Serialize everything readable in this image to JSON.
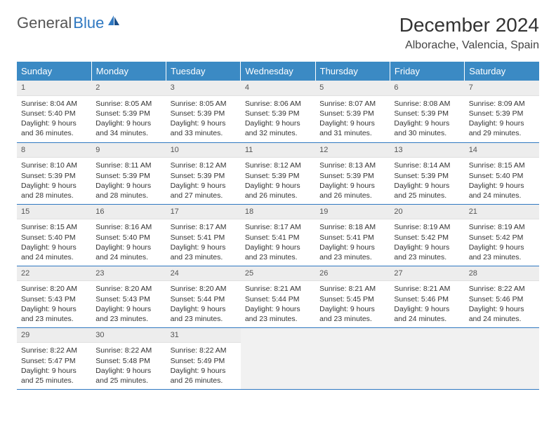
{
  "brand": {
    "part1": "General",
    "part2": "Blue"
  },
  "title": "December 2024",
  "location": "Alborache, Valencia, Spain",
  "colors": {
    "header_bg": "#3b8ac4",
    "header_text": "#ffffff",
    "accent_line": "#2f78c1",
    "daynum_bg": "#ededed",
    "empty_bg": "#f1f1f1",
    "page_bg": "#ffffff",
    "text": "#333333"
  },
  "typography": {
    "title_fontsize": 28,
    "location_fontsize": 16,
    "header_fontsize": 13,
    "cell_fontsize": 10.5
  },
  "weekdays": [
    "Sunday",
    "Monday",
    "Tuesday",
    "Wednesday",
    "Thursday",
    "Friday",
    "Saturday"
  ],
  "grid": {
    "rows": 5,
    "cols": 7
  },
  "days": [
    {
      "n": 1,
      "sunrise": "8:04 AM",
      "sunset": "5:40 PM",
      "dayh": 9,
      "daym": 36
    },
    {
      "n": 2,
      "sunrise": "8:05 AM",
      "sunset": "5:39 PM",
      "dayh": 9,
      "daym": 34
    },
    {
      "n": 3,
      "sunrise": "8:05 AM",
      "sunset": "5:39 PM",
      "dayh": 9,
      "daym": 33
    },
    {
      "n": 4,
      "sunrise": "8:06 AM",
      "sunset": "5:39 PM",
      "dayh": 9,
      "daym": 32
    },
    {
      "n": 5,
      "sunrise": "8:07 AM",
      "sunset": "5:39 PM",
      "dayh": 9,
      "daym": 31
    },
    {
      "n": 6,
      "sunrise": "8:08 AM",
      "sunset": "5:39 PM",
      "dayh": 9,
      "daym": 30
    },
    {
      "n": 7,
      "sunrise": "8:09 AM",
      "sunset": "5:39 PM",
      "dayh": 9,
      "daym": 29
    },
    {
      "n": 8,
      "sunrise": "8:10 AM",
      "sunset": "5:39 PM",
      "dayh": 9,
      "daym": 28
    },
    {
      "n": 9,
      "sunrise": "8:11 AM",
      "sunset": "5:39 PM",
      "dayh": 9,
      "daym": 28
    },
    {
      "n": 10,
      "sunrise": "8:12 AM",
      "sunset": "5:39 PM",
      "dayh": 9,
      "daym": 27
    },
    {
      "n": 11,
      "sunrise": "8:12 AM",
      "sunset": "5:39 PM",
      "dayh": 9,
      "daym": 26
    },
    {
      "n": 12,
      "sunrise": "8:13 AM",
      "sunset": "5:39 PM",
      "dayh": 9,
      "daym": 26
    },
    {
      "n": 13,
      "sunrise": "8:14 AM",
      "sunset": "5:39 PM",
      "dayh": 9,
      "daym": 25
    },
    {
      "n": 14,
      "sunrise": "8:15 AM",
      "sunset": "5:40 PM",
      "dayh": 9,
      "daym": 24
    },
    {
      "n": 15,
      "sunrise": "8:15 AM",
      "sunset": "5:40 PM",
      "dayh": 9,
      "daym": 24
    },
    {
      "n": 16,
      "sunrise": "8:16 AM",
      "sunset": "5:40 PM",
      "dayh": 9,
      "daym": 24
    },
    {
      "n": 17,
      "sunrise": "8:17 AM",
      "sunset": "5:41 PM",
      "dayh": 9,
      "daym": 23
    },
    {
      "n": 18,
      "sunrise": "8:17 AM",
      "sunset": "5:41 PM",
      "dayh": 9,
      "daym": 23
    },
    {
      "n": 19,
      "sunrise": "8:18 AM",
      "sunset": "5:41 PM",
      "dayh": 9,
      "daym": 23
    },
    {
      "n": 20,
      "sunrise": "8:19 AM",
      "sunset": "5:42 PM",
      "dayh": 9,
      "daym": 23
    },
    {
      "n": 21,
      "sunrise": "8:19 AM",
      "sunset": "5:42 PM",
      "dayh": 9,
      "daym": 23
    },
    {
      "n": 22,
      "sunrise": "8:20 AM",
      "sunset": "5:43 PM",
      "dayh": 9,
      "daym": 23
    },
    {
      "n": 23,
      "sunrise": "8:20 AM",
      "sunset": "5:43 PM",
      "dayh": 9,
      "daym": 23
    },
    {
      "n": 24,
      "sunrise": "8:20 AM",
      "sunset": "5:44 PM",
      "dayh": 9,
      "daym": 23
    },
    {
      "n": 25,
      "sunrise": "8:21 AM",
      "sunset": "5:44 PM",
      "dayh": 9,
      "daym": 23
    },
    {
      "n": 26,
      "sunrise": "8:21 AM",
      "sunset": "5:45 PM",
      "dayh": 9,
      "daym": 23
    },
    {
      "n": 27,
      "sunrise": "8:21 AM",
      "sunset": "5:46 PM",
      "dayh": 9,
      "daym": 24
    },
    {
      "n": 28,
      "sunrise": "8:22 AM",
      "sunset": "5:46 PM",
      "dayh": 9,
      "daym": 24
    },
    {
      "n": 29,
      "sunrise": "8:22 AM",
      "sunset": "5:47 PM",
      "dayh": 9,
      "daym": 25
    },
    {
      "n": 30,
      "sunrise": "8:22 AM",
      "sunset": "5:48 PM",
      "dayh": 9,
      "daym": 25
    },
    {
      "n": 31,
      "sunrise": "8:22 AM",
      "sunset": "5:49 PM",
      "dayh": 9,
      "daym": 26
    }
  ],
  "labels": {
    "sunrise": "Sunrise:",
    "sunset": "Sunset:",
    "daylight": "Daylight:",
    "hours": "hours",
    "and": "and",
    "minutes": "minutes."
  }
}
